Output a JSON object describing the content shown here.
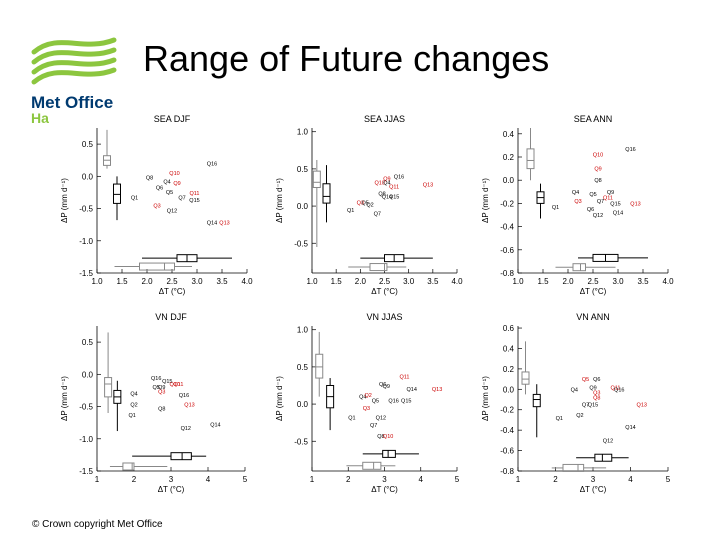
{
  "slide": {
    "title": "Range of Future changes",
    "footer": "© Crown copyright   Met Office",
    "logo": {
      "name": "Met Office",
      "sub": "Ha",
      "color": "#8cc63f",
      "text_color": "#003a70"
    }
  },
  "chart_data": [
    {
      "type": "scatter",
      "title": "SEA DJF",
      "xlabel": "ΔT (°C)",
      "ylabel": "ΔP (mm d⁻¹)",
      "xlim": [
        1.0,
        4.0
      ],
      "ylim": [
        -1.5,
        0.75
      ],
      "xticks": [
        1.0,
        1.5,
        2.0,
        2.5,
        3.0,
        3.5,
        4.0
      ],
      "xtick_labels": [
        "1.0",
        "1.5",
        "2.0",
        "2.5",
        "3.0",
        "3.5",
        "4.0"
      ],
      "yticks": [
        -1.5,
        -1.0,
        -0.5,
        0.0,
        0.5
      ],
      "ytick_labels": [
        "-1.5",
        "-1.0",
        "-0.5",
        "0.0",
        "0.5"
      ],
      "points": [
        {
          "label": "Q16",
          "x": 3.3,
          "y": 0.2,
          "color": "#000000"
        },
        {
          "label": "Q10",
          "x": 2.55,
          "y": 0.05,
          "color": "#cc0000"
        },
        {
          "label": "Q8",
          "x": 2.05,
          "y": -0.02,
          "color": "#000000"
        },
        {
          "label": "Q4",
          "x": 2.4,
          "y": -0.08,
          "color": "#000000"
        },
        {
          "label": "Q9",
          "x": 2.6,
          "y": -0.1,
          "color": "#cc0000"
        },
        {
          "label": "Q6",
          "x": 2.25,
          "y": -0.17,
          "color": "#000000"
        },
        {
          "label": "Q5",
          "x": 2.45,
          "y": -0.24,
          "color": "#000000"
        },
        {
          "label": "Q11",
          "x": 2.95,
          "y": -0.26,
          "color": "#cc0000"
        },
        {
          "label": "Q7",
          "x": 2.7,
          "y": -0.33,
          "color": "#000000"
        },
        {
          "label": "Q15",
          "x": 2.95,
          "y": -0.37,
          "color": "#000000"
        },
        {
          "label": "Q1",
          "x": 1.75,
          "y": -0.33,
          "color": "#000000"
        },
        {
          "label": "Q3",
          "x": 2.2,
          "y": -0.45,
          "color": "#cc0000"
        },
        {
          "label": "Q12",
          "x": 2.5,
          "y": -0.53,
          "color": "#000000"
        },
        {
          "label": "Q14",
          "x": 3.3,
          "y": -0.72,
          "color": "#000000"
        },
        {
          "label": "Q13",
          "x": 3.55,
          "y": -0.72,
          "color": "#cc0000"
        }
      ],
      "box_y_gray": {
        "x": 1.2,
        "min": 0.12,
        "q1": 0.17,
        "med": 0.25,
        "q3": 0.32,
        "max": 0.72
      },
      "box_y_black": {
        "x": 1.4,
        "min": -0.68,
        "q1": -0.42,
        "med": -0.28,
        "q3": -0.12,
        "max": 0.0
      },
      "box_x_gray": {
        "y": -1.4,
        "min": 1.35,
        "q1": 1.85,
        "med": 2.35,
        "q3": 2.55,
        "max": 2.9
      },
      "box_x_black": {
        "y": -1.27,
        "min": 1.9,
        "q1": 2.6,
        "med": 2.8,
        "q3": 3.0,
        "max": 3.7
      }
    },
    {
      "type": "scatter",
      "title": "SEA JJAS",
      "xlabel": "ΔT (°C)",
      "ylabel": "ΔP (mm d⁻¹)",
      "xlim": [
        1.0,
        4.0
      ],
      "ylim": [
        -0.9,
        1.05
      ],
      "xticks": [
        1.0,
        1.5,
        2.0,
        2.5,
        3.0,
        3.5,
        4.0
      ],
      "xtick_labels": [
        "1.0",
        "1.5",
        "2.0",
        "2.5",
        "3.0",
        "3.5",
        "4.0"
      ],
      "yticks": [
        -0.5,
        0.0,
        0.5,
        1.0
      ],
      "ytick_labels": [
        "-0.5",
        "0.0",
        "0.5",
        "1.0"
      ],
      "points": [
        {
          "label": "Q16",
          "x": 2.8,
          "y": 0.4,
          "color": "#000000"
        },
        {
          "label": "Q9",
          "x": 2.55,
          "y": 0.37,
          "color": "#cc0000"
        },
        {
          "label": "Q10",
          "x": 2.4,
          "y": 0.32,
          "color": "#cc0000"
        },
        {
          "label": "Q4",
          "x": 2.55,
          "y": 0.32,
          "color": "#000000"
        },
        {
          "label": "Q13",
          "x": 3.4,
          "y": 0.29,
          "color": "#cc0000"
        },
        {
          "label": "Q11",
          "x": 2.7,
          "y": 0.26,
          "color": "#cc0000"
        },
        {
          "label": "Q8",
          "x": 2.45,
          "y": 0.17,
          "color": "#000000"
        },
        {
          "label": "Q14",
          "x": 2.55,
          "y": 0.13,
          "color": "#000000"
        },
        {
          "label": "Q15",
          "x": 2.7,
          "y": 0.13,
          "color": "#000000"
        },
        {
          "label": "Q3",
          "x": 2.0,
          "y": 0.05,
          "color": "#cc0000"
        },
        {
          "label": "Q5",
          "x": 2.1,
          "y": 0.05,
          "color": "#000000"
        },
        {
          "label": "Q2",
          "x": 2.2,
          "y": 0.02,
          "color": "#000000"
        },
        {
          "label": "Q1",
          "x": 1.8,
          "y": -0.05,
          "color": "#000000"
        },
        {
          "label": "Q7",
          "x": 2.35,
          "y": -0.1,
          "color": "#000000"
        }
      ],
      "box_y_gray": {
        "x": 1.1,
        "min": -0.55,
        "q1": 0.25,
        "med": 0.32,
        "q3": 0.47,
        "max": 0.62
      },
      "box_y_black": {
        "x": 1.3,
        "min": -0.22,
        "q1": 0.04,
        "med": 0.13,
        "q3": 0.3,
        "max": 0.55
      },
      "box_x_gray": {
        "y": -0.82,
        "min": 1.75,
        "q1": 2.2,
        "med": 2.5,
        "q3": 2.55,
        "max": 2.95
      },
      "box_x_black": {
        "y": -0.7,
        "min": 2.0,
        "q1": 2.5,
        "med": 2.7,
        "q3": 2.9,
        "max": 3.5
      }
    },
    {
      "type": "scatter",
      "title": "SEA ANN",
      "xlabel": "ΔT (°C)",
      "ylabel": "ΔP (mm d⁻¹)",
      "xlim": [
        1.0,
        4.0
      ],
      "ylim": [
        -0.8,
        0.45
      ],
      "xticks": [
        1.0,
        1.5,
        2.0,
        2.5,
        3.0,
        3.5,
        4.0
      ],
      "xtick_labels": [
        "1.0",
        "1.5",
        "2.0",
        "2.5",
        "3.0",
        "3.5",
        "4.0"
      ],
      "yticks": [
        -0.8,
        -0.6,
        -0.4,
        -0.2,
        0.0,
        0.2,
        0.4
      ],
      "ytick_labels": [
        "-0.8",
        "-0.6",
        "-0.4",
        "-0.2",
        "0.0",
        "0.2",
        "0.4"
      ],
      "points": [
        {
          "label": "Q16",
          "x": 3.25,
          "y": 0.27,
          "color": "#000000"
        },
        {
          "label": "Q10",
          "x": 2.6,
          "y": 0.22,
          "color": "#cc0000"
        },
        {
          "label": "Q9",
          "x": 2.6,
          "y": 0.1,
          "color": "#cc0000"
        },
        {
          "label": "Q8",
          "x": 2.6,
          "y": 0.0,
          "color": "#000000"
        },
        {
          "label": "Q4",
          "x": 2.15,
          "y": -0.1,
          "color": "#000000"
        },
        {
          "label": "Q5",
          "x": 2.5,
          "y": -0.12,
          "color": "#000000"
        },
        {
          "label": "Q9",
          "x": 2.85,
          "y": -0.1,
          "color": "#000000"
        },
        {
          "label": "Q11",
          "x": 2.8,
          "y": -0.15,
          "color": "#cc0000"
        },
        {
          "label": "Q7",
          "x": 2.65,
          "y": -0.18,
          "color": "#000000"
        },
        {
          "label": "Q3",
          "x": 2.2,
          "y": -0.18,
          "color": "#cc0000"
        },
        {
          "label": "Q15",
          "x": 2.95,
          "y": -0.2,
          "color": "#000000"
        },
        {
          "label": "Q13",
          "x": 3.35,
          "y": -0.2,
          "color": "#cc0000"
        },
        {
          "label": "Q1",
          "x": 1.75,
          "y": -0.23,
          "color": "#000000"
        },
        {
          "label": "Q6",
          "x": 2.45,
          "y": -0.25,
          "color": "#000000"
        },
        {
          "label": "Q14",
          "x": 3.0,
          "y": -0.28,
          "color": "#000000"
        },
        {
          "label": "Q12",
          "x": 2.6,
          "y": -0.3,
          "color": "#000000"
        }
      ],
      "box_y_gray": {
        "x": 1.25,
        "min": 0.0,
        "q1": 0.1,
        "med": 0.17,
        "q3": 0.27,
        "max": 0.45
      },
      "box_y_black": {
        "x": 1.45,
        "min": -0.33,
        "q1": -0.2,
        "med": -0.15,
        "q3": -0.1,
        "max": -0.03
      },
      "box_x_gray": {
        "y": -0.75,
        "min": 1.75,
        "q1": 2.1,
        "med": 2.25,
        "q3": 2.35,
        "max": 2.95
      },
      "box_x_black": {
        "y": -0.67,
        "min": 2.2,
        "q1": 2.5,
        "med": 2.75,
        "q3": 3.0,
        "max": 3.6
      }
    },
    {
      "type": "scatter",
      "title": "VN DJF",
      "xlabel": "ΔT (°C)",
      "ylabel": "ΔP (mm d⁻¹)",
      "xlim": [
        1,
        5
      ],
      "ylim": [
        -1.5,
        0.75
      ],
      "xticks": [
        1,
        2,
        3,
        4,
        5
      ],
      "xtick_labels": [
        "1",
        "2",
        "3",
        "4",
        "5"
      ],
      "yticks": [
        -1.5,
        -1.0,
        -0.5,
        0.0,
        0.5
      ],
      "ytick_labels": [
        "-1.5",
        "-1.0",
        "-0.5",
        "0.0",
        "0.5"
      ],
      "points": [
        {
          "label": "Q16",
          "x": 2.6,
          "y": -0.06,
          "color": "#000000"
        },
        {
          "label": "Q15",
          "x": 2.9,
          "y": -0.1,
          "color": "#000000"
        },
        {
          "label": "Q10",
          "x": 3.1,
          "y": -0.15,
          "color": "#cc0000"
        },
        {
          "label": "Q11",
          "x": 3.2,
          "y": -0.15,
          "color": "#cc0000"
        },
        {
          "label": "Q5",
          "x": 2.6,
          "y": -0.2,
          "color": "#000000"
        },
        {
          "label": "Q9",
          "x": 2.75,
          "y": -0.2,
          "color": "#000000"
        },
        {
          "label": "Q3",
          "x": 2.75,
          "y": -0.27,
          "color": "#cc0000"
        },
        {
          "label": "Q4",
          "x": 2.0,
          "y": -0.3,
          "color": "#000000"
        },
        {
          "label": "Q16",
          "x": 3.35,
          "y": -0.32,
          "color": "#000000"
        },
        {
          "label": "Q2",
          "x": 2.0,
          "y": -0.47,
          "color": "#000000"
        },
        {
          "label": "Q13",
          "x": 3.5,
          "y": -0.47,
          "color": "#cc0000"
        },
        {
          "label": "Q1",
          "x": 1.95,
          "y": -0.63,
          "color": "#000000"
        },
        {
          "label": "Q8",
          "x": 2.75,
          "y": -0.53,
          "color": "#000000"
        },
        {
          "label": "Q12",
          "x": 3.4,
          "y": -0.83,
          "color": "#000000"
        },
        {
          "label": "Q14",
          "x": 4.2,
          "y": -0.78,
          "color": "#000000"
        }
      ],
      "box_y_gray": {
        "x": 1.3,
        "min": -0.6,
        "q1": -0.35,
        "med": -0.15,
        "q3": -0.05,
        "max": 0.65
      },
      "box_y_black": {
        "x": 1.55,
        "min": -0.88,
        "q1": -0.45,
        "med": -0.35,
        "q3": -0.25,
        "max": -0.1
      },
      "box_x_gray": {
        "y": -1.43,
        "min": 1.35,
        "q1": 1.7,
        "med": 1.95,
        "q3": 2.0,
        "max": 2.9
      },
      "box_x_black": {
        "y": -1.27,
        "min": 1.95,
        "q1": 3.0,
        "med": 3.3,
        "q3": 3.55,
        "max": 3.95
      }
    },
    {
      "type": "scatter",
      "title": "VN JJAS",
      "xlabel": "ΔT (°C)",
      "ylabel": "ΔP (mm d⁻¹)",
      "xlim": [
        1,
        5
      ],
      "ylim": [
        -0.9,
        1.05
      ],
      "xticks": [
        1,
        2,
        3,
        4,
        5
      ],
      "xtick_labels": [
        "1",
        "2",
        "3",
        "4",
        "5"
      ],
      "yticks": [
        -0.5,
        0.0,
        0.5,
        1.0
      ],
      "ytick_labels": [
        "-0.5",
        "0.0",
        "0.5",
        "1.0"
      ],
      "points": [
        {
          "label": "Q11",
          "x": 3.55,
          "y": 0.37,
          "color": "#cc0000"
        },
        {
          "label": "Q6",
          "x": 2.95,
          "y": 0.27,
          "color": "#000000"
        },
        {
          "label": "Q9",
          "x": 3.05,
          "y": 0.24,
          "color": "#000000"
        },
        {
          "label": "Q14",
          "x": 3.75,
          "y": 0.2,
          "color": "#000000"
        },
        {
          "label": "Q13",
          "x": 4.45,
          "y": 0.2,
          "color": "#cc0000"
        },
        {
          "label": "Q4",
          "x": 2.4,
          "y": 0.1,
          "color": "#000000"
        },
        {
          "label": "Q2",
          "x": 2.55,
          "y": 0.12,
          "color": "#cc0000"
        },
        {
          "label": "Q5",
          "x": 2.75,
          "y": 0.05,
          "color": "#000000"
        },
        {
          "label": "Q16",
          "x": 3.25,
          "y": 0.05,
          "color": "#000000"
        },
        {
          "label": "Q15",
          "x": 3.6,
          "y": 0.05,
          "color": "#000000"
        },
        {
          "label": "Q3",
          "x": 2.5,
          "y": -0.05,
          "color": "#cc0000"
        },
        {
          "label": "Q1",
          "x": 2.1,
          "y": -0.18,
          "color": "#000000"
        },
        {
          "label": "Q12",
          "x": 2.9,
          "y": -0.18,
          "color": "#000000"
        },
        {
          "label": "Q7",
          "x": 2.7,
          "y": -0.28,
          "color": "#000000"
        },
        {
          "label": "Q8",
          "x": 2.9,
          "y": -0.43,
          "color": "#000000"
        },
        {
          "label": "Q10",
          "x": 3.1,
          "y": -0.43,
          "color": "#cc0000"
        }
      ],
      "box_y_gray": {
        "x": 1.2,
        "min": 0.1,
        "q1": 0.35,
        "med": 0.5,
        "q3": 0.67,
        "max": 0.97
      },
      "box_y_black": {
        "x": 1.5,
        "min": -0.35,
        "q1": -0.05,
        "med": 0.1,
        "q3": 0.25,
        "max": 0.35
      },
      "box_x_gray": {
        "y": -0.83,
        "min": 1.95,
        "q1": 2.4,
        "med": 2.7,
        "q3": 2.9,
        "max": 3.3
      },
      "box_x_black": {
        "y": -0.67,
        "min": 2.4,
        "q1": 2.95,
        "med": 3.1,
        "q3": 3.3,
        "max": 3.95
      }
    },
    {
      "type": "scatter",
      "title": "VN ANN",
      "xlabel": "ΔT (°C)",
      "ylabel": "ΔP (mm d⁻¹)",
      "xlim": [
        1,
        5
      ],
      "ylim": [
        -0.8,
        0.62
      ],
      "xticks": [
        1,
        2,
        3,
        4,
        5
      ],
      "xtick_labels": [
        "1",
        "2",
        "3",
        "4",
        "5"
      ],
      "yticks": [
        -0.8,
        -0.6,
        -0.4,
        -0.2,
        0.0,
        0.2,
        0.4,
        0.6
      ],
      "ytick_labels": [
        "-0.8",
        "-0.6",
        "-0.4",
        "-0.2",
        "0.0",
        "0.2",
        "0.4",
        "0.6"
      ],
      "points": [
        {
          "label": "Q5",
          "x": 2.8,
          "y": 0.1,
          "color": "#cc0000"
        },
        {
          "label": "Q6",
          "x": 3.1,
          "y": 0.1,
          "color": "#000000"
        },
        {
          "label": "Q9",
          "x": 3.0,
          "y": 0.02,
          "color": "#000000"
        },
        {
          "label": "Q11",
          "x": 3.6,
          "y": 0.02,
          "color": "#cc0000"
        },
        {
          "label": "Q4",
          "x": 2.5,
          "y": 0.0,
          "color": "#000000"
        },
        {
          "label": "Q16",
          "x": 3.7,
          "y": 0.0,
          "color": "#000000"
        },
        {
          "label": "Q3",
          "x": 3.1,
          "y": -0.03,
          "color": "#cc0000"
        },
        {
          "label": "Q8",
          "x": 3.1,
          "y": -0.08,
          "color": "#cc0000"
        },
        {
          "label": "Q15",
          "x": 3.0,
          "y": -0.15,
          "color": "#000000"
        },
        {
          "label": "Q7",
          "x": 2.8,
          "y": -0.15,
          "color": "#000000"
        },
        {
          "label": "Q13",
          "x": 4.3,
          "y": -0.15,
          "color": "#cc0000"
        },
        {
          "label": "Q2",
          "x": 2.65,
          "y": -0.25,
          "color": "#000000"
        },
        {
          "label": "Q1",
          "x": 2.1,
          "y": -0.28,
          "color": "#000000"
        },
        {
          "label": "Q14",
          "x": 4.0,
          "y": -0.37,
          "color": "#000000"
        },
        {
          "label": "Q12",
          "x": 3.4,
          "y": -0.5,
          "color": "#000000"
        }
      ],
      "box_y_gray": {
        "x": 1.2,
        "min": -0.05,
        "q1": 0.05,
        "med": 0.1,
        "q3": 0.17,
        "max": 0.47
      },
      "box_y_black": {
        "x": 1.5,
        "min": -0.47,
        "q1": -0.17,
        "med": -0.1,
        "q3": -0.05,
        "max": 0.05
      },
      "box_x_gray": {
        "y": -0.77,
        "min": 1.9,
        "q1": 2.2,
        "med": 2.6,
        "q3": 2.75,
        "max": 3.35
      },
      "box_x_black": {
        "y": -0.67,
        "min": 2.55,
        "q1": 3.05,
        "med": 3.25,
        "q3": 3.5,
        "max": 3.95
      }
    }
  ]
}
